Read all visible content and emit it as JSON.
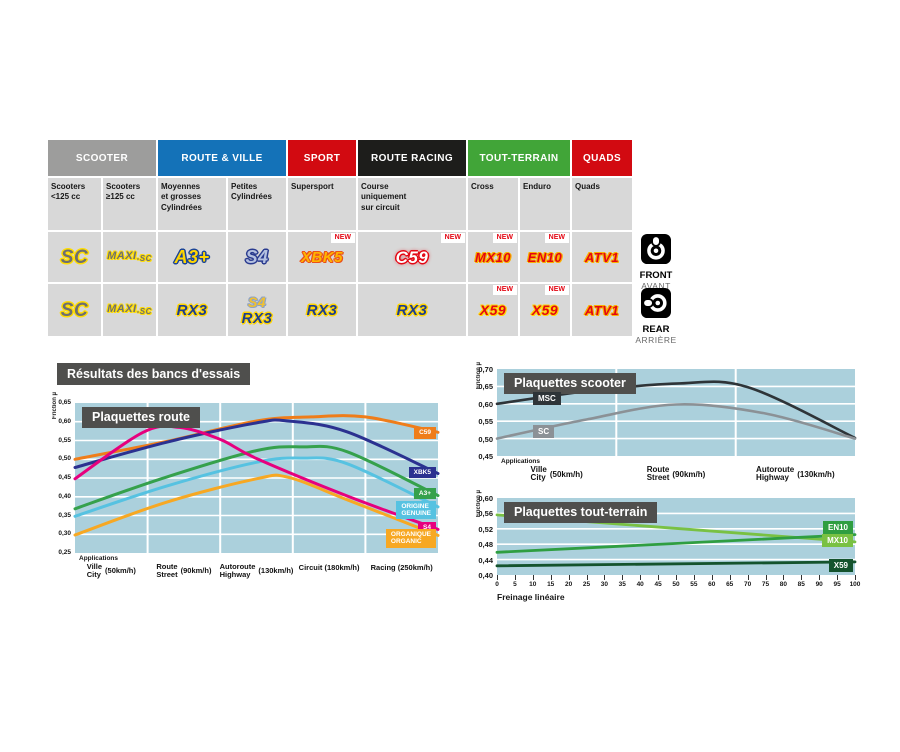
{
  "results_title": "Résultats des bancs d'essais",
  "colors": {
    "plot_bg": "#abd0dc",
    "panel_title_bg": "#4f4f4d",
    "cell_bg": "#d8d8d8",
    "new_badge_text": "#e30613",
    "scooter_header": "#9d9d9c",
    "route_ville_header": "#1472b8",
    "sport_header": "#d20a11",
    "route_racing_header": "#1d1d1b",
    "tout_terrain_header": "#41a538",
    "quads_header": "#d20a11"
  },
  "table": {
    "new_label": "NEW",
    "groups": [
      {
        "label": "SCOOTER",
        "color": "#9d9d9c",
        "span": 2
      },
      {
        "label": "ROUTE & VILLE",
        "color": "#1472b8",
        "span": 2
      },
      {
        "label": "SPORT",
        "color": "#d20a11",
        "span": 1
      },
      {
        "label": "ROUTE RACING",
        "color": "#1d1d1b",
        "span": 1
      },
      {
        "label": "TOUT-TERRAIN",
        "color": "#41a538",
        "span": 2
      },
      {
        "label": "QUADS",
        "color": "#d20a11",
        "span": 1
      }
    ],
    "subheaders": [
      "Scooters\n<125 cc",
      "Scooters\n≥125 cc",
      "Moyennes\net grosses\nCylindrées",
      "Petites\nCylindrées",
      "Supersport",
      "Course\nuniquement\nsur circuit",
      "Cross",
      "Enduro",
      "Quads"
    ],
    "rows": {
      "front": {
        "cells": [
          {
            "logos": [
              {
                "text": "SC",
                "style": "sc"
              }
            ]
          },
          {
            "logos": [
              {
                "text": "MAXI",
                "sub": "-SC",
                "style": "maxi"
              }
            ]
          },
          {
            "logos": [
              {
                "text": "A3+",
                "style": "a3"
              }
            ]
          },
          {
            "logos": [
              {
                "text": "S4",
                "style": "s4"
              }
            ]
          },
          {
            "logos": [
              {
                "text": "XBK5",
                "style": "xbk"
              }
            ],
            "new": true
          },
          {
            "logos": [
              {
                "text": "C59",
                "style": "c59"
              }
            ],
            "new": true
          },
          {
            "logos": [
              {
                "text": "MX10",
                "style": "mx"
              }
            ],
            "new": true
          },
          {
            "logos": [
              {
                "text": "EN10",
                "style": "mx"
              }
            ],
            "new": true
          },
          {
            "logos": [
              {
                "text": "ATV1",
                "style": "atv"
              }
            ]
          }
        ]
      },
      "rear": {
        "cells": [
          {
            "logos": [
              {
                "text": "SC",
                "style": "sc"
              }
            ]
          },
          {
            "logos": [
              {
                "text": "MAXI",
                "sub": "-SC",
                "style": "maxi"
              }
            ]
          },
          {
            "logos": [
              {
                "text": "RX3",
                "style": "rx"
              }
            ]
          },
          {
            "logos": [
              {
                "text": "S4",
                "style": "s4b"
              },
              {
                "text": "RX3",
                "style": "rx"
              }
            ]
          },
          {
            "logos": [
              {
                "text": "RX3",
                "style": "rx"
              }
            ]
          },
          {
            "logos": [
              {
                "text": "RX3",
                "style": "rx"
              }
            ]
          },
          {
            "logos": [
              {
                "text": "X59",
                "style": "x59"
              }
            ],
            "new": true
          },
          {
            "logos": [
              {
                "text": "X59",
                "style": "x59"
              }
            ],
            "new": true
          },
          {
            "logos": [
              {
                "text": "ATV1",
                "style": "atv"
              }
            ]
          }
        ]
      }
    }
  },
  "orientation": {
    "front": {
      "label": "FRONT",
      "sublabel": "AVANT"
    },
    "rear": {
      "label": "REAR",
      "sublabel": "ARRIÈRE"
    }
  },
  "chart_data": {
    "route": {
      "type": "line",
      "title": "Plaquettes route",
      "yaxis_label": "Friction µ",
      "applications_label": "Applications",
      "ylim": [
        0.25,
        0.65
      ],
      "ystep": 0.05,
      "yticks": [
        "0,65",
        "0,60",
        "0,55",
        "0,50",
        "0,45",
        "0,40",
        "0,35",
        "0,30",
        "0,25"
      ],
      "xmax": 4,
      "columns": 5,
      "smooth": true,
      "stroke": 3,
      "xlabels": [
        {
          "fr": "Ville",
          "en": "City",
          "speed": "(50km/h)"
        },
        {
          "fr": "Route",
          "en": "Street",
          "speed": "(90km/h)"
        },
        {
          "fr": "Autoroute",
          "en": "Highway",
          "speed": "(130km/h)"
        },
        {
          "fr": "Circuit",
          "en": "",
          "speed": "(180km/h)"
        },
        {
          "fr": "Racing",
          "en": "",
          "speed": "(250km/h)"
        }
      ],
      "series": [
        {
          "name": "C59",
          "color": "#ef7d1a",
          "points": [
            [
              0,
              0.5
            ],
            [
              1,
              0.547
            ],
            [
              2,
              0.602
            ],
            [
              2.6,
              0.613
            ],
            [
              3.2,
              0.613
            ],
            [
              4,
              0.572
            ]
          ]
        },
        {
          "name": "XBK5",
          "color": "#2b3190",
          "points": [
            [
              0,
              0.478
            ],
            [
              1,
              0.545
            ],
            [
              2,
              0.597
            ],
            [
              2.35,
              0.602
            ],
            [
              3,
              0.573
            ],
            [
              4,
              0.462
            ]
          ]
        },
        {
          "name": "A3+",
          "color": "#35a14c",
          "points": [
            [
              0,
              0.368
            ],
            [
              1,
              0.452
            ],
            [
              2,
              0.523
            ],
            [
              2.5,
              0.533
            ],
            [
              3,
              0.52
            ],
            [
              4,
              0.403
            ]
          ]
        },
        {
          "name": "ORIGINE GENUINE",
          "color": "#56c2e1",
          "points": [
            [
              0,
              0.348
            ],
            [
              1,
              0.428
            ],
            [
              2,
              0.492
            ],
            [
              2.5,
              0.503
            ],
            [
              3,
              0.488
            ],
            [
              4,
              0.373
            ]
          ]
        },
        {
          "name": "S4",
          "color": "#e6007e",
          "points": [
            [
              0,
              0.448
            ],
            [
              0.75,
              0.572
            ],
            [
              1.15,
              0.585
            ],
            [
              1.6,
              0.553
            ],
            [
              2,
              0.502
            ],
            [
              3,
              0.402
            ],
            [
              4,
              0.313
            ]
          ]
        },
        {
          "name": "ORGANIQUE ORGANIC",
          "color": "#f7a823",
          "points": [
            [
              0,
              0.298
            ],
            [
              1,
              0.385
            ],
            [
              2,
              0.448
            ],
            [
              2.35,
              0.452
            ],
            [
              3,
              0.392
            ],
            [
              4,
              0.297
            ]
          ]
        }
      ],
      "legend": [
        {
          "label": "C59",
          "color": "#ef7d1a",
          "y": 0.567
        },
        {
          "label": "XBK5",
          "color": "#2b3190",
          "y": 0.462
        },
        {
          "label": "A3+",
          "color": "#35a14c",
          "y": 0.405
        },
        {
          "label": "ORIGINE\nGENUINE",
          "color": "#56c2e1",
          "y": 0.366
        },
        {
          "label": "S4",
          "color": "#e6007e",
          "y": 0.315
        },
        {
          "label": "ORGANIQUE\nORGANIC",
          "color": "#f7a823",
          "y": 0.29
        }
      ]
    },
    "scooter": {
      "type": "line",
      "title": "Plaquettes scooter",
      "yaxis_label": "Friction µ",
      "applications_label": "Applications",
      "ylim": [
        0.45,
        0.7
      ],
      "ystep": 0.05,
      "yticks": [
        "0,70",
        "0,65",
        "0,60",
        "0,55",
        "0,50",
        "0,45"
      ],
      "xmax": 2,
      "columns": 3,
      "smooth": true,
      "stroke": 2.6,
      "xlabels": [
        {
          "fr": "Ville",
          "en": "City",
          "speed": "(50km/h)"
        },
        {
          "fr": "Route",
          "en": "Street",
          "speed": "(90km/h)"
        },
        {
          "fr": "Autoroute",
          "en": "Highway",
          "speed": "(130km/h)"
        }
      ],
      "series": [
        {
          "name": "MSC",
          "color": "#2e3438",
          "points": [
            [
              0,
              0.6
            ],
            [
              0.5,
              0.636
            ],
            [
              1,
              0.658
            ],
            [
              1.4,
              0.648
            ],
            [
              2,
              0.502
            ]
          ]
        },
        {
          "name": "SC",
          "color": "#8b9196",
          "points": [
            [
              0,
              0.5
            ],
            [
              0.5,
              0.555
            ],
            [
              1,
              0.598
            ],
            [
              1.5,
              0.572
            ],
            [
              2,
              0.5
            ]
          ]
        }
      ],
      "legend": [
        {
          "label": "MSC",
          "color": "#2e3438",
          "y": 0.615,
          "left": 36
        },
        {
          "label": "SC",
          "color": "#8b9196",
          "y": 0.52,
          "left": 36
        }
      ]
    },
    "tout_terrain": {
      "type": "line",
      "title": "Plaquettes tout-terrain",
      "yaxis_label": "Friction µ",
      "xlabel": "Freinage linéaire",
      "ylim": [
        0.4,
        0.6
      ],
      "ystep": 0.04,
      "yticks": [
        "0,60",
        "0,56",
        "0,52",
        "0,48",
        "0,44",
        "0,40"
      ],
      "xmax": 100,
      "smooth": false,
      "stroke": 2.8,
      "xticks": [
        0,
        5,
        10,
        15,
        20,
        25,
        30,
        35,
        40,
        45,
        50,
        55,
        60,
        65,
        70,
        75,
        80,
        85,
        90,
        95,
        100
      ],
      "series": [
        {
          "name": "MX10",
          "color": "#79c143",
          "points": [
            [
              0,
              0.556
            ],
            [
              100,
              0.486
            ]
          ]
        },
        {
          "name": "EN10",
          "color": "#2f9e41",
          "points": [
            [
              0,
              0.459
            ],
            [
              100,
              0.505
            ]
          ]
        },
        {
          "name": "X59",
          "color": "#14532d",
          "points": [
            [
              0,
              0.424
            ],
            [
              100,
              0.434
            ]
          ]
        }
      ],
      "legend": [
        {
          "label": "EN10",
          "color": "#2f9e41",
          "y": 0.523
        },
        {
          "label": "MX10",
          "color": "#79c143",
          "y": 0.489
        },
        {
          "label": "X59",
          "color": "#14532d",
          "y": 0.424
        }
      ]
    }
  }
}
